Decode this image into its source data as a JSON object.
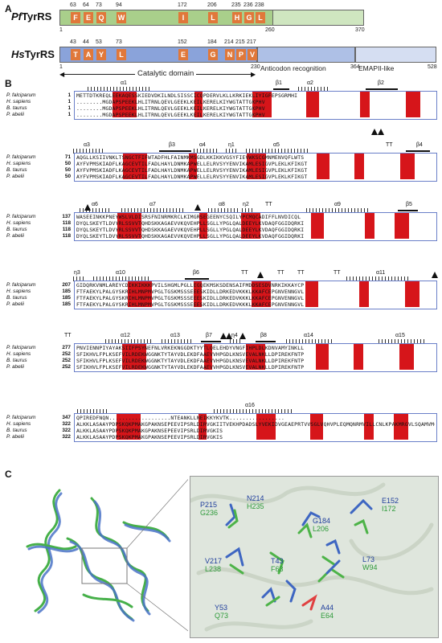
{
  "panelA": {
    "label": "A",
    "pf": {
      "name": "Pf",
      "suffix": "TyrRS",
      "residues": [
        "F",
        "E",
        "Q",
        "W",
        "I",
        "L",
        "H",
        "G",
        "L"
      ],
      "numbers": [
        "63",
        "64",
        "73",
        "94",
        "172",
        "206",
        "235",
        "236",
        "238"
      ],
      "start": "1",
      "mid": "260",
      "end": "370"
    },
    "hs": {
      "name": "Hs",
      "suffix": "TyrRS",
      "residues": [
        "T",
        "A",
        "Y",
        "L",
        "E",
        "G",
        "N",
        "P",
        "V"
      ],
      "numbers": [
        "43",
        "44",
        "53",
        "73",
        "152",
        "184",
        "214",
        "215",
        "217"
      ],
      "start": "1",
      "mid": "230",
      "n364": "364",
      "end": "528",
      "anticodon": "Anticodon recognition",
      "emap": "EMAPII-like"
    },
    "catalytic": "Catalytic domain"
  },
  "panelB": {
    "label": "B",
    "species": [
      "P. falciparum",
      "H. sapiens",
      "B. taurus",
      "P. abelii"
    ],
    "blocks": [
      {
        "nums": [
          "1",
          "1",
          "1",
          "1"
        ],
        "ss": [
          "α1",
          "β1",
          "α2",
          "β2"
        ],
        "seqs": [
          "METTDTKREQLEEKAQESSKIEDVDKILNDLSISSCICQPDERVLKLLKRKIEKLIYIGFEPSGRMHI",
          "........MGDAPSPEEKLHLITRNLQEVLGEEKLKEILKERELKIYWGTATTGKPHV",
          "........MGDAPSPEEKLHLITRNLQEVLGEEKLKEILKERELKIYWGTATTGKPHV",
          "........MGDAPSPEEKLHLITRNLQEVLGEEKLKEILKERELKIYWGTATTGKPHV"
        ]
      },
      {
        "nums": [
          "71",
          "50",
          "50",
          "50"
        ],
        "ss": [
          "α3",
          "β3",
          "α4",
          "η1",
          "α5",
          "TT",
          "β4"
        ],
        "seqs": [
          "AQGLLKSIIVNKLTSNGCTFIFWTADFHLFAINMKMSGDLKKIKKVGSYFIEVWKSCGMNMENVQFLWTS",
          "AYFVPMSKIADFLKAGCEVTILFADLHAYLDNMKAPWELLELRVSYYENVIKAMLESIGVPLEKLKFIKGT",
          "AYFVPMSKIADFLKAGCEVTILFADLHAYLDNMKAPWELLELRVSYYENVIKAMLESIGVPLEKLKFIKGT",
          "AYFVPMSKIADFLKAGCEVTILFADLHAYLDNMKAPWELLELRVSYYENVIKAMLESIGVPLEKLKFIKGT"
        ]
      },
      {
        "nums": [
          "137",
          "118",
          "118",
          "118"
        ],
        "ss": [
          "α6",
          "α7",
          "α8",
          "η2",
          "TT",
          "α9",
          "β5"
        ],
        "seqs": [
          "WASEEINKKPNEYWSLVLDISRSFNINRMKRCLKIMGRSEGEENYCSQILYPCMQCADIFFLNVDICQL",
          "DYQLSKEYTLDVYRLSSVVTQHDSKKAGAEVVKQVEHPLLSGLLYPGLQALDEEYLKVDAQFGGIDQRKI",
          "DYQLSKEYTLDVYRLSSVVTQHDSKKAGAEVVKQVEHPLLSGLLYPGLQALDEEYLKVDAQFGGIDQRKI",
          "DYQLSKEYTLDVYRLSSVVTQHDSKKAGAEVVKQVEHPLLSGLLYPGLQALDEEYLKVDAQFGGIDQRKI"
        ]
      },
      {
        "nums": [
          "207",
          "185",
          "185",
          "185"
        ],
        "ss": [
          "η3",
          "α10",
          "β6",
          "TT",
          "TT",
          "TT",
          "TT",
          "α11"
        ],
        "seqs": [
          "GIDQRKVNMLAREYCDIKKIKKKPVILSHGMLPGLLEGQEKMSKSDENSAIFMDDSESDVNRKIKKAYCP",
          "FTFAEKYLPALGYSKRIHLMNPMVPGLTGSKMSSSEEESKIDLLDRKEDVKKKLKKAFCEPGNVENNGVL",
          "FTFAEKYLPALGYSKRIHLMNPMVPGLTGSKMSSSEEESKIDLLDRKEDVKKKLKKAFCEPGNVENNGVL",
          "FTFAEKYLPALGYSKRIHLMNPMVPGLTGSKMSSSEEESKIDLLDRKEDVKKKLKKAFCEPGNVENNGVL"
        ]
      },
      {
        "nums": [
          "277",
          "252",
          "252",
          "252"
        ],
        "ss": [
          "TT",
          "α12",
          "α13",
          "β7",
          "η4",
          "β8",
          "α14",
          "α15"
        ],
        "seqs": [
          "PNVIENNPIYAYAKSIIFPSYNEFNLVRKEKNGGDKTYYTLQELEHDYVNGFIHPLDLKDNVAMYINKLL",
          "SFIKHVLFPLKSEFVILRDEKWGGNKTYTAYVDLEKDFAAEVVHPGDLKNSVEVALNKLLDPIREKFNTP",
          "SFIKHVLFPLKSEFVILRDEKWGGNKTYTAYVDLEKDFAAEVVHPGDLKNSVEVALNKLLDPIREKFNTP",
          "SFIKHVLFPLKSEFVILRDEKWGGNKTYTAYVDLEKDFAAEVVHPGDLKNSVEVALNKLLDPIREKFNTP"
        ]
      },
      {
        "nums": [
          "347",
          "322",
          "322",
          "322"
        ],
        "ss": [
          "α16"
        ],
        "seqs": [
          "QPIREDFNQN...................NTEANKLLNEIKKYKVTK.................",
          "ALKKLASAAYPDPSKQKPMAKGPAKNSEPEEVIPSRLDIRVGKIITVEKHPDADSLYVEKIDVGEAEPRTVVSGLVQHVPLEQMQNRMVILLCNLKPAKMRGVLSQAMVMCASSPEKIEILAPPNGSVPGDRITFDAFPGEPDKELNPKKKIWEQIQPDLHTNDECVATYKGVPFEVKGKGVCRAQTMSNSGIK",
          "ALKKLASAAYPDPSKQKPMAKGPAKNSEPEEVIPSRLDIRVGKIS",
          "ALKKLASAAYPDPSKQKPMAKGPAKNSEPEEVIPSRLDIRVGKIS"
        ]
      }
    ]
  },
  "panelC": {
    "label": "C",
    "labels": [
      {
        "hs": "P215",
        "pf": "G236"
      },
      {
        "hs": "N214",
        "pf": "H235"
      },
      {
        "hs": "E152",
        "pf": "I172"
      },
      {
        "hs": "G184",
        "pf": "L206"
      },
      {
        "hs": "V217",
        "pf": "L238"
      },
      {
        "hs": "T43",
        "pf": "F63"
      },
      {
        "hs": "L73",
        "pf": "W94"
      },
      {
        "hs": "Y53",
        "pf": "Q73"
      },
      {
        "hs": "A44",
        "pf": "E64"
      }
    ],
    "colors": {
      "hs": "#1f3e9c",
      "pf": "#2e9a3a"
    }
  }
}
